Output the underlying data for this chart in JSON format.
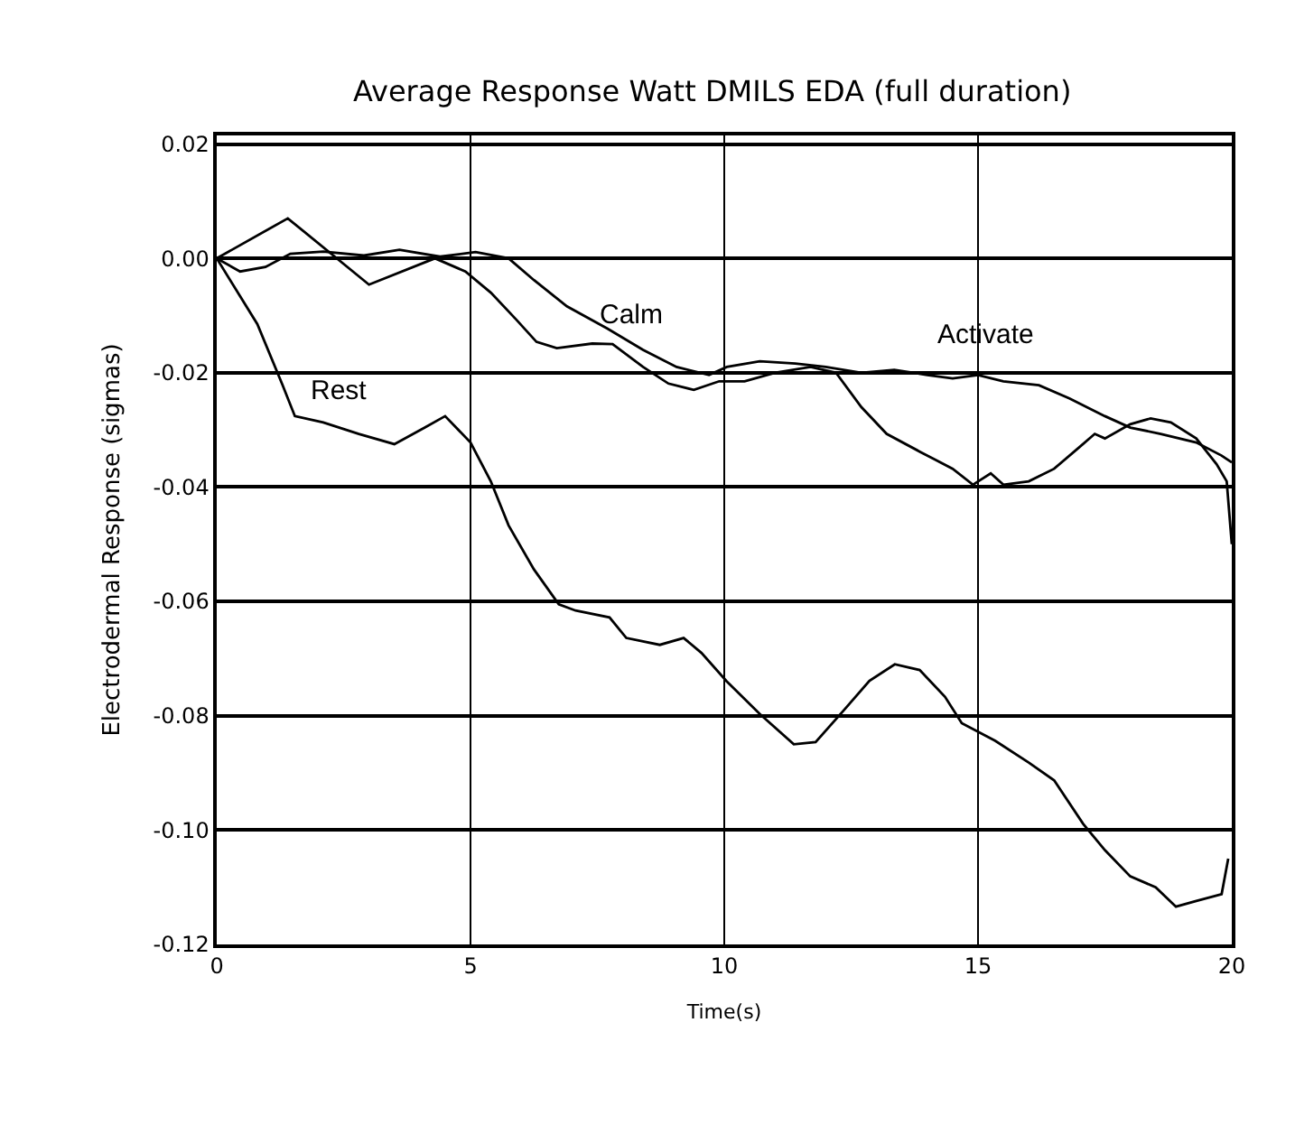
{
  "chart_data": {
    "type": "line",
    "title": "Average Response Watt DMILS EDA (full duration)",
    "xlabel": "Time(s)",
    "ylabel": "Electrodermal Response (sigmas)",
    "xlim": [
      0,
      20
    ],
    "xticks": [
      0,
      5,
      10,
      15,
      20
    ],
    "ylim": [
      -0.12,
      0.0215
    ],
    "yticks": [
      {
        "value": -0.12,
        "label": "-0.12"
      },
      {
        "value": -0.1,
        "label": "-0.10"
      },
      {
        "value": -0.08,
        "label": "-0.08"
      },
      {
        "value": -0.06,
        "label": "-0.06"
      },
      {
        "value": -0.04,
        "label": "-0.04"
      },
      {
        "value": -0.02,
        "label": "-0.02"
      },
      {
        "value": 0,
        "label": "0.00"
      },
      {
        "value": 0.02,
        "label": "0.02"
      }
    ],
    "grid": true,
    "legend": false,
    "marker": "none",
    "line_style": "solid",
    "series": [
      {
        "name": "Rest",
        "color": "#000000",
        "x": [
          0,
          0.8,
          1.29,
          1.54,
          2.1,
          2.8,
          3.5,
          4.1,
          4.5,
          5.0,
          5.4,
          5.75,
          6.25,
          6.74,
          7.07,
          7.74,
          8.07,
          8.73,
          9.2,
          9.55,
          10.05,
          10.7,
          11.37,
          11.8,
          12.36,
          12.86,
          13.36,
          13.85,
          14.35,
          14.68,
          15.34,
          16.0,
          16.5,
          17.07,
          17.5,
          18.0,
          18.5,
          18.9,
          19.3,
          19.8,
          19.93
        ],
        "values": [
          0,
          -0.0115,
          -0.022,
          -0.0276,
          -0.0287,
          -0.0307,
          -0.0325,
          -0.0296,
          -0.0276,
          -0.0322,
          -0.039,
          -0.0467,
          -0.0544,
          -0.0605,
          -0.0616,
          -0.0628,
          -0.0664,
          -0.0676,
          -0.0664,
          -0.069,
          -0.074,
          -0.0797,
          -0.085,
          -0.0846,
          -0.079,
          -0.0739,
          -0.071,
          -0.072,
          -0.0767,
          -0.0813,
          -0.0844,
          -0.0882,
          -0.0913,
          -0.0989,
          -0.1035,
          -0.1081,
          -0.11,
          -0.1134,
          -0.1124,
          -0.1112,
          -0.105
        ]
      },
      {
        "name": "Calm",
        "color": "#000000",
        "x": [
          0,
          1.4,
          3.0,
          4.3,
          4.9,
          5.4,
          5.9,
          6.3,
          6.7,
          7.4,
          7.8,
          8.4,
          8.9,
          9.4,
          9.9,
          10.4,
          11.0,
          11.7,
          12.2,
          12.7,
          13.2,
          13.85,
          14.5,
          14.9,
          15.25,
          15.5,
          16,
          16.5,
          17.0,
          17.3,
          17.5,
          18.0,
          18.4,
          18.8,
          19.3,
          19.7,
          19.9,
          20
        ],
        "values": [
          0,
          0.007,
          -0.0046,
          0,
          -0.0023,
          -0.006,
          -0.0107,
          -0.0146,
          -0.0157,
          -0.0149,
          -0.015,
          -0.019,
          -0.0219,
          -0.023,
          -0.0215,
          -0.0215,
          -0.02,
          -0.019,
          -0.02,
          -0.026,
          -0.0307,
          -0.0338,
          -0.0368,
          -0.0396,
          -0.0376,
          -0.0396,
          -0.039,
          -0.0368,
          -0.033,
          -0.0307,
          -0.0315,
          -0.029,
          -0.028,
          -0.0287,
          -0.0315,
          -0.036,
          -0.039,
          -0.05
        ]
      },
      {
        "name": "Activate",
        "color": "#000000",
        "x": [
          0,
          0.46,
          0.96,
          1.45,
          2.1,
          2.9,
          3.6,
          4.4,
          5.1,
          5.75,
          6.25,
          6.9,
          7.7,
          8.4,
          9.06,
          9.7,
          10.05,
          10.7,
          11.4,
          12.0,
          12.7,
          13.35,
          14.0,
          14.5,
          15.0,
          15.5,
          16.2,
          16.8,
          17.5,
          18.0,
          18.6,
          19.3,
          19.8,
          20
        ],
        "values": [
          0,
          -0.0023,
          -0.0015,
          0.0008,
          0.0012,
          0.0005,
          0.0015,
          0.0003,
          0.0011,
          0,
          -0.0038,
          -0.0084,
          -0.0123,
          -0.016,
          -0.019,
          -0.0204,
          -0.019,
          -0.018,
          -0.0184,
          -0.019,
          -0.02,
          -0.0195,
          -0.0204,
          -0.021,
          -0.0204,
          -0.0215,
          -0.0222,
          -0.0245,
          -0.0276,
          -0.0296,
          -0.0307,
          -0.0322,
          -0.0345,
          -0.0357
        ]
      }
    ]
  }
}
